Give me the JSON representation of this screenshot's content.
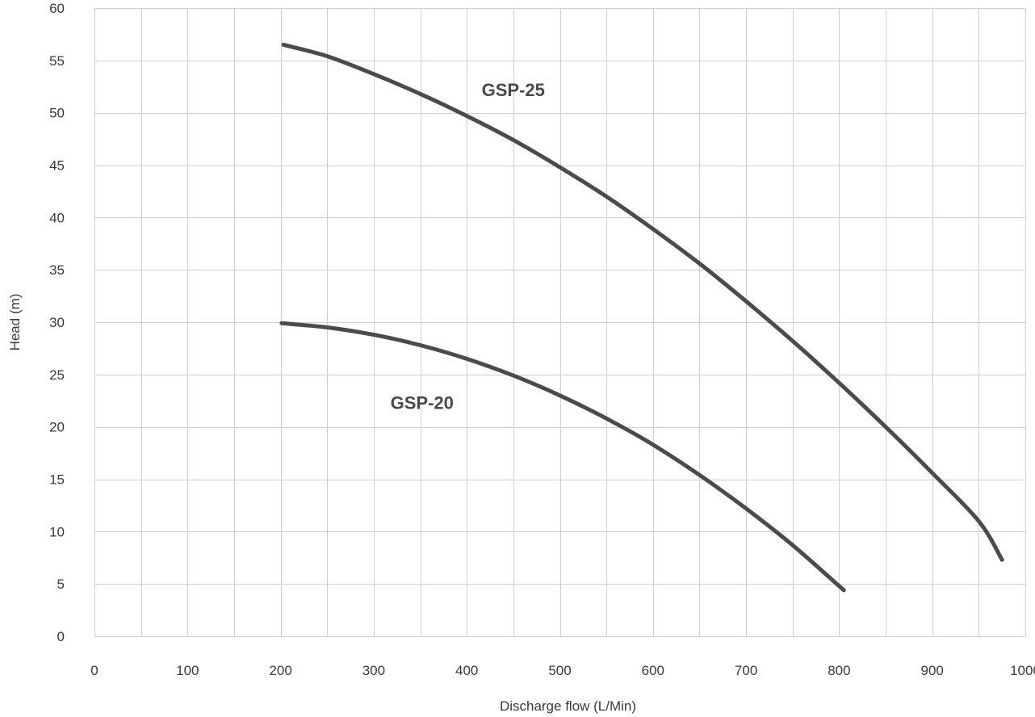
{
  "chart_data": {
    "type": "line",
    "title": "",
    "xlabel": "Discharge flow (L/Min)",
    "ylabel": "Head (m)",
    "xlim": [
      0,
      1000
    ],
    "ylim": [
      0,
      60
    ],
    "x_ticks": [
      "0",
      "100",
      "200",
      "300",
      "400",
      "500",
      "600",
      "700",
      "800",
      "900",
      "1000"
    ],
    "y_ticks": [
      "0",
      "5",
      "10",
      "15",
      "20",
      "25",
      "30",
      "35",
      "40",
      "45",
      "50",
      "55",
      "60"
    ],
    "grid": true,
    "series": [
      {
        "name": "GSP-25",
        "color": "#4d4a4f",
        "points": [
          [
            203,
            56.5
          ],
          [
            250,
            55.4
          ],
          [
            300,
            53.7
          ],
          [
            350,
            51.8
          ],
          [
            400,
            49.7
          ],
          [
            450,
            47.4
          ],
          [
            500,
            44.8
          ],
          [
            550,
            42.0
          ],
          [
            600,
            38.9
          ],
          [
            650,
            35.6
          ],
          [
            700,
            32.0
          ],
          [
            750,
            28.2
          ],
          [
            800,
            24.2
          ],
          [
            850,
            20.0
          ],
          [
            900,
            15.6
          ],
          [
            950,
            11.0
          ],
          [
            975,
            7.3
          ]
        ]
      },
      {
        "name": "GSP-20",
        "color": "#4d4a4f",
        "points": [
          [
            201,
            29.9
          ],
          [
            250,
            29.5
          ],
          [
            300,
            28.8
          ],
          [
            350,
            27.8
          ],
          [
            400,
            26.5
          ],
          [
            450,
            24.9
          ],
          [
            500,
            23.0
          ],
          [
            550,
            20.8
          ],
          [
            600,
            18.3
          ],
          [
            650,
            15.4
          ],
          [
            700,
            12.2
          ],
          [
            750,
            8.7
          ],
          [
            805,
            4.4
          ]
        ]
      }
    ]
  }
}
